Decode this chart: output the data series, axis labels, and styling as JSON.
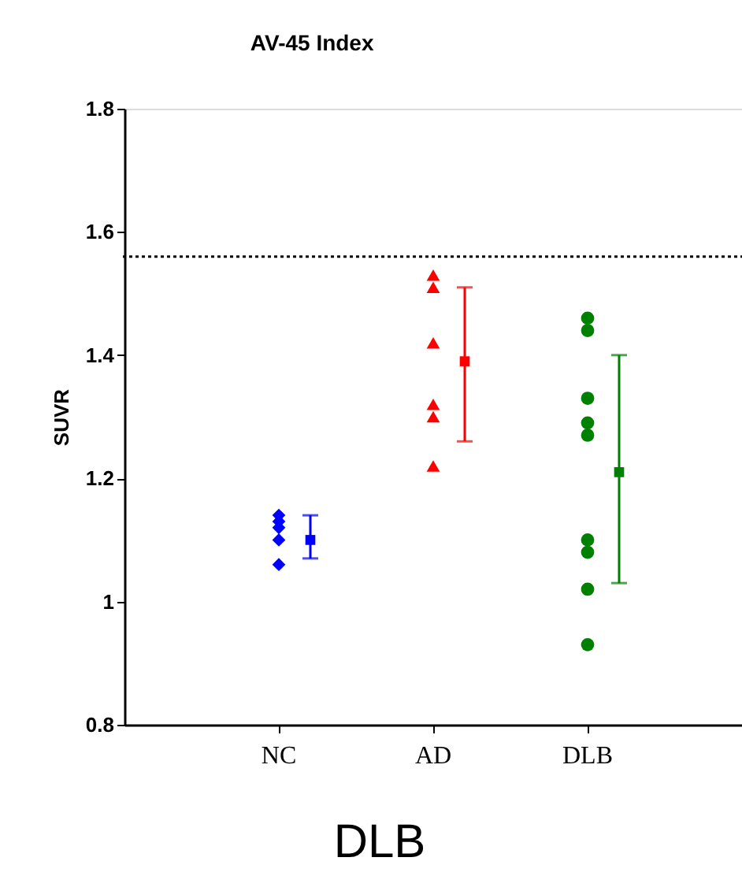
{
  "chart_data": {
    "type": "scatter",
    "title": "AV-45 Index",
    "ylabel": "SUVR",
    "categories": [
      "NC",
      "AD",
      "DLB"
    ],
    "ylim": [
      0.8,
      1.8
    ],
    "yticks": [
      0.8,
      1,
      1.2,
      1.4,
      1.6,
      1.8
    ],
    "grid": false,
    "series": [
      {
        "type": "scatter",
        "color": "#0000ff",
        "marker": "diamond",
        "x": [
          "NC",
          "NC",
          "NC",
          "NC",
          "NC"
        ],
        "values": [
          1.14,
          1.13,
          1.12,
          1.1,
          1.06
        ]
      },
      {
        "type": "scatter",
        "color": "#ff0000",
        "marker": "triangle",
        "x": [
          "AD",
          "AD",
          "AD",
          "AD",
          "AD",
          "AD"
        ],
        "values": [
          1.53,
          1.51,
          1.42,
          1.32,
          1.3,
          1.22
        ]
      },
      {
        "type": "scatter",
        "color": "#008000",
        "marker": "circle",
        "x": [
          "DLB",
          "DLB",
          "DLB",
          "DLB",
          "DLB",
          "DLB",
          "DLB",
          "DLB",
          "DLB"
        ],
        "values": [
          1.46,
          1.44,
          1.33,
          1.29,
          1.27,
          1.1,
          1.08,
          1.02,
          0.93
        ]
      },
      {
        "type": "scatter",
        "colors": [
          "#0000ff",
          "#ff0000",
          "#008000"
        ],
        "marker": "square",
        "x": [
          "NC",
          "AD",
          "DLB"
        ],
        "values": [
          1.1,
          1.39,
          1.21
        ],
        "errors": [
          [
            1.07,
            1.14
          ],
          [
            1.26,
            1.51
          ],
          [
            1.03,
            1.4
          ]
        ]
      }
    ],
    "ref_lines": [
      {
        "axis": "y",
        "value": 1.56,
        "color": "#000000",
        "line_style": "dotted"
      }
    ],
    "annotations": [
      "DLB"
    ]
  }
}
